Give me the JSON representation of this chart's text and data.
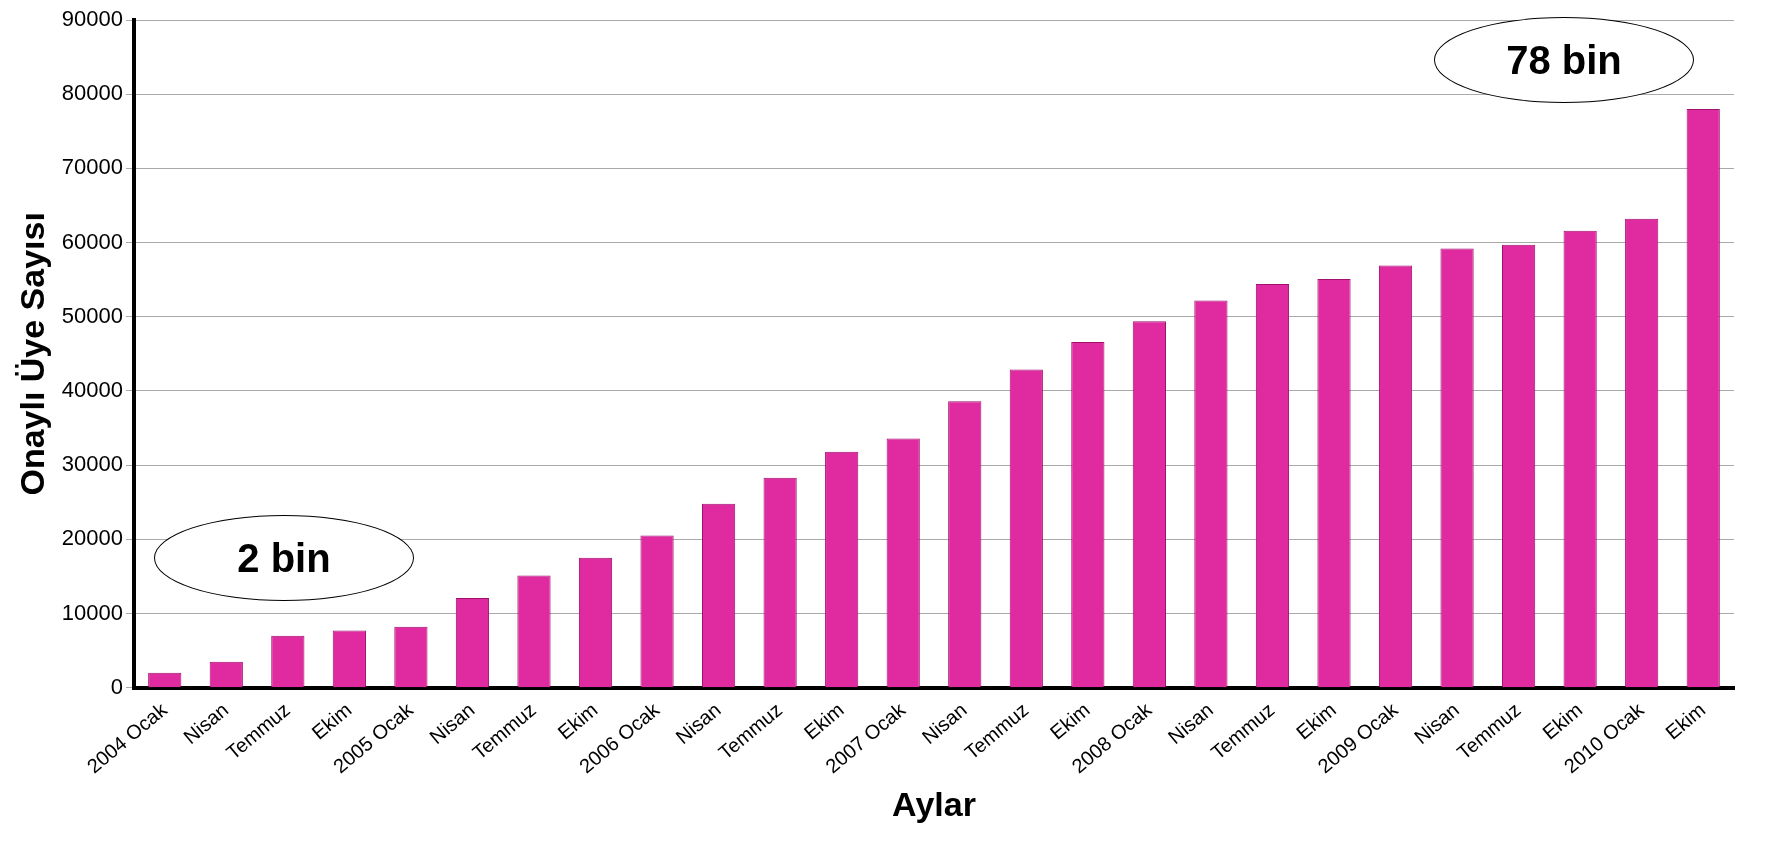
{
  "chart_data": {
    "type": "bar",
    "xlabel": "Aylar",
    "ylabel": "Onaylı Üye Sayısı",
    "categories": [
      "2004 Ocak",
      "Nisan",
      "Temmuz",
      "Ekim",
      "2005 Ocak",
      "Nisan",
      "Temmuz",
      "Ekim",
      "2006 Ocak",
      "Nisan",
      "Temmuz",
      "Ekim",
      "2007 Ocak",
      "Nisan",
      "Temmuz",
      "Ekim",
      "2008 Ocak",
      "Nisan",
      "Temmuz",
      "Ekim",
      "2009 Ocak",
      "Nisan",
      "Temmuz",
      "Ekim",
      "2010 Ocak",
      "Ekim"
    ],
    "values": [
      2000,
      3500,
      7000,
      7700,
      8200,
      12100,
      15100,
      17500,
      20500,
      24800,
      28300,
      31800,
      33600,
      38600,
      42900,
      46600,
      49400,
      52200,
      54400,
      55100,
      56900,
      59200,
      59700,
      61600,
      63200,
      78000
    ],
    "color": "#e02aa0",
    "ylim": [
      0,
      90000
    ],
    "yticks": [
      0,
      10000,
      20000,
      30000,
      40000,
      50000,
      60000,
      70000,
      80000,
      90000
    ],
    "grid": "y",
    "annotations": [
      "2 bin",
      "78 bin"
    ]
  }
}
